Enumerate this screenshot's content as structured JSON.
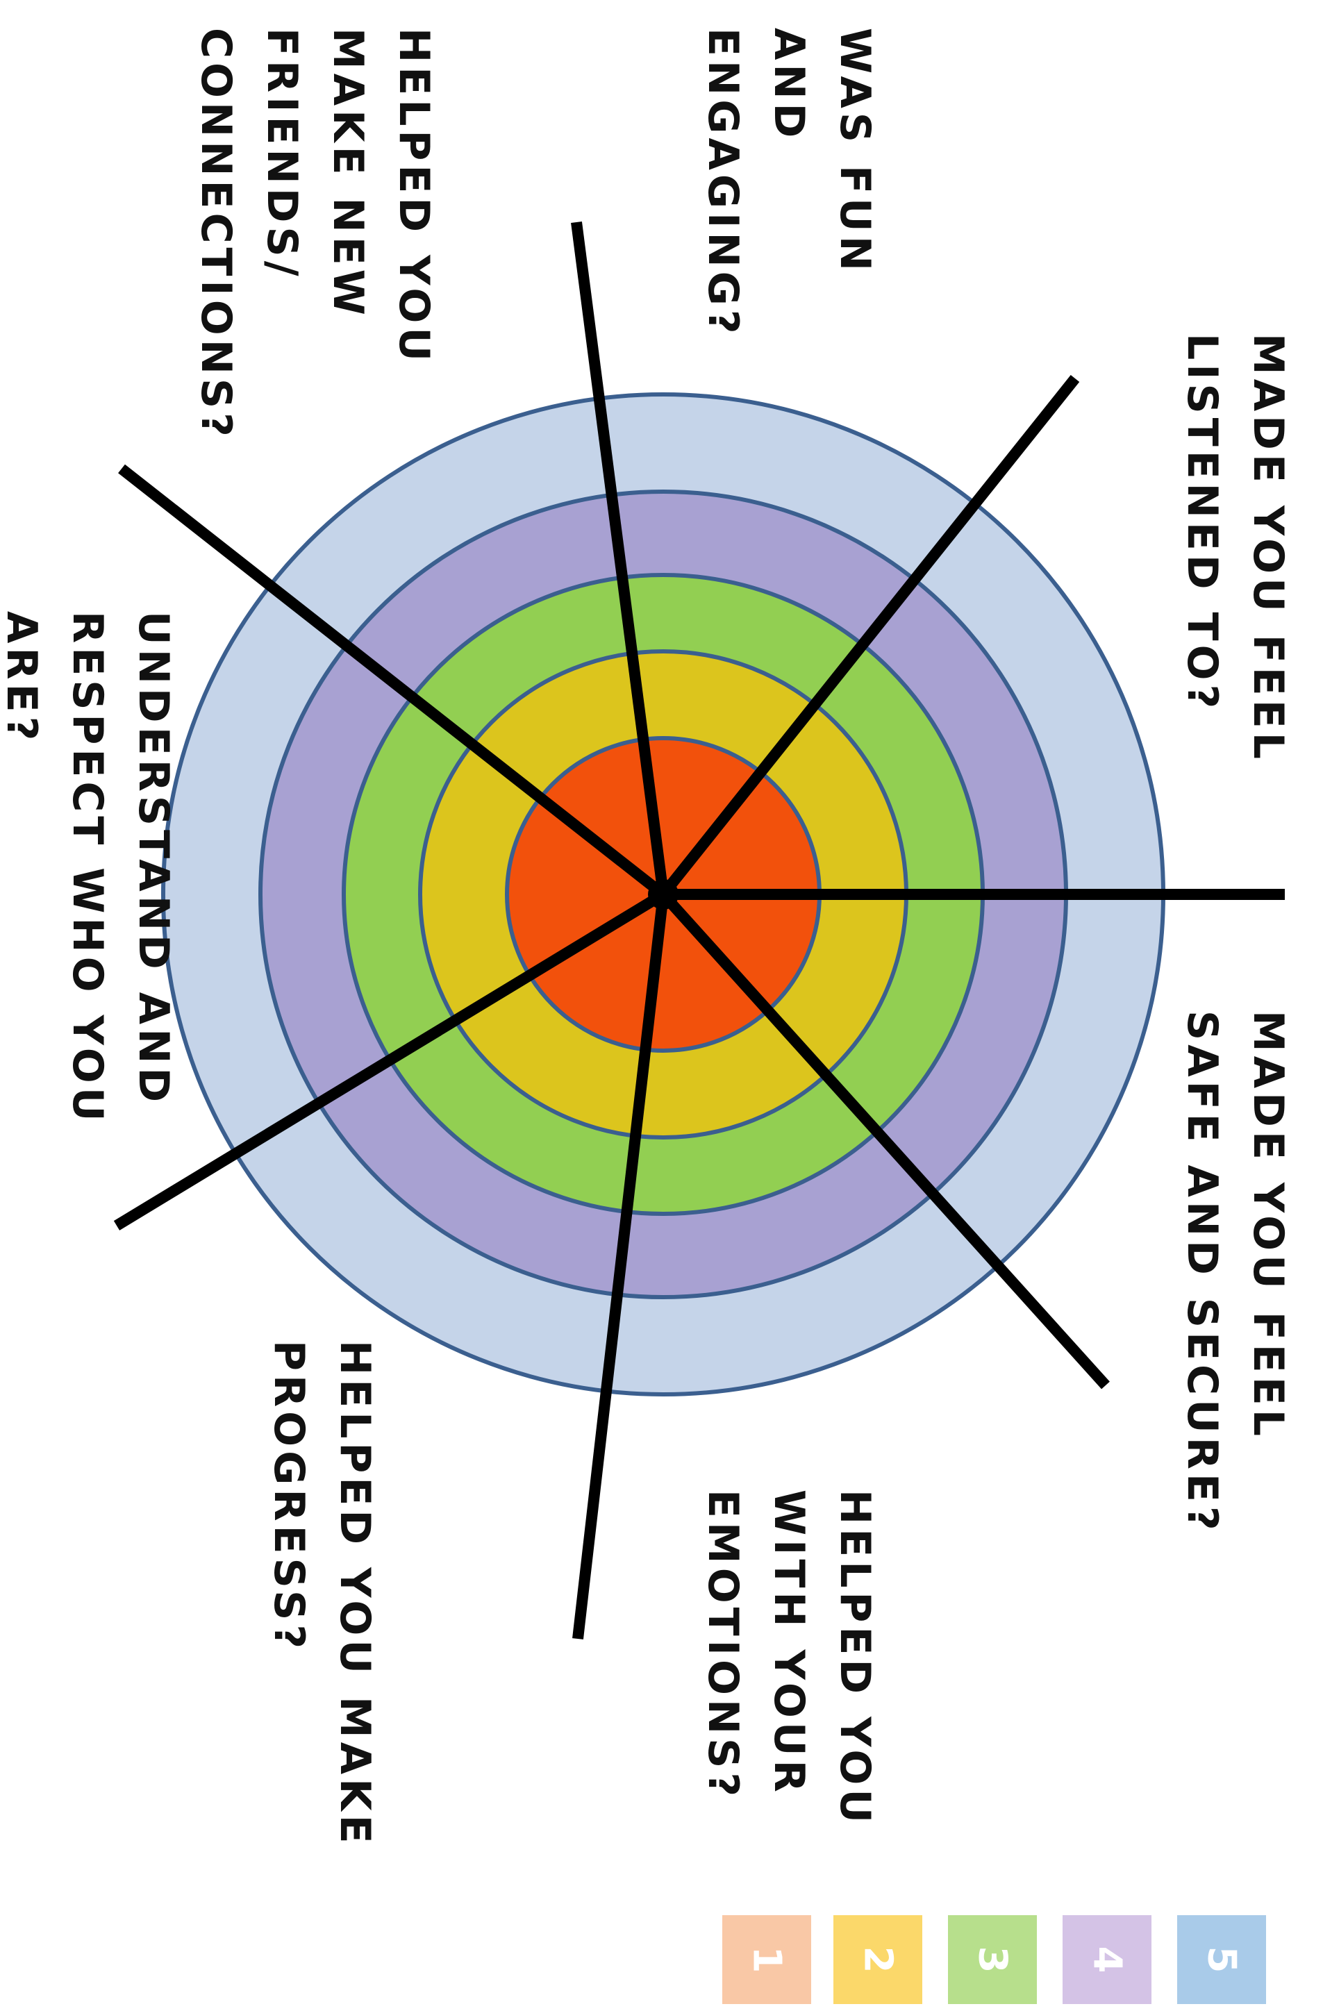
{
  "wheel": {
    "rings": [
      {
        "level": 5,
        "color": "#c5d4e9"
      },
      {
        "level": 4,
        "color": "#a8a1d2"
      },
      {
        "level": 3,
        "color": "#92cf52"
      },
      {
        "level": 2,
        "color": "#dcc51d"
      },
      {
        "level": 1,
        "color": "#f2510c"
      }
    ],
    "ring_stroke": "#3b5f8f",
    "spoke_color": "#000000"
  },
  "labels": [
    {
      "id": "made-you-feel-listened-to",
      "lines": [
        "MADE YOU FEEL",
        "LISTENED TO?"
      ]
    },
    {
      "id": "made-you-feel-safe-and-secure",
      "lines": [
        "MADE YOU FEEL",
        "SAFE AND SECURE?"
      ]
    },
    {
      "id": "was-fun-and-engaging",
      "lines": [
        "WAS FUN",
        "AND",
        "ENGAGING?"
      ]
    },
    {
      "id": "helped-you-make-new-friends",
      "lines": [
        "HELPED YOU",
        "MAKE NEW",
        "FRIENDS/",
        "CONNECTIONS?"
      ]
    },
    {
      "id": "helped-you-with-your-emotions",
      "lines": [
        "HELPED YOU",
        "WITH YOUR",
        "EMOTIONS?"
      ]
    },
    {
      "id": "helped-you-make-progress",
      "lines": [
        "HELPED YOU MAKE",
        "PROGRESS?"
      ]
    },
    {
      "id": "understand-and-respect-who-you-are",
      "lines": [
        "UNDERSTAND AND",
        "RESPECT WHO YOU",
        "ARE?"
      ]
    }
  ],
  "legend": [
    {
      "number": "1",
      "color": "#f9c8a6"
    },
    {
      "number": "2",
      "color": "#fbd86a"
    },
    {
      "number": "3",
      "color": "#b7df8c"
    },
    {
      "number": "4",
      "color": "#d4c3e6"
    },
    {
      "number": "5",
      "color": "#a9cbe9"
    }
  ]
}
